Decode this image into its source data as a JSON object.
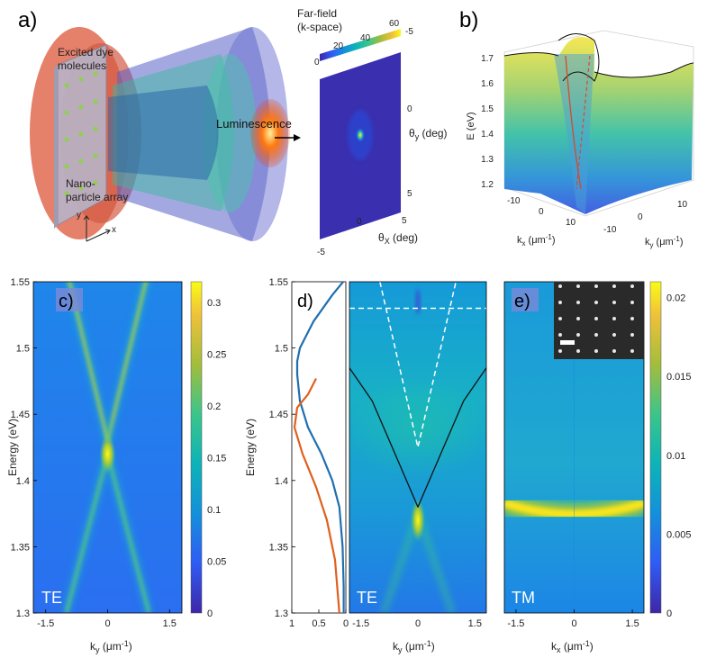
{
  "panels": {
    "a": {
      "label": "a)",
      "text_dye": [
        "Excited dye",
        "molecules"
      ],
      "text_np": [
        "Nano-",
        "particle array"
      ],
      "text_lum": "Luminescence",
      "axis_y": "y",
      "axis_x": "x",
      "farfield_title": [
        "Far-field",
        "(k-space)"
      ],
      "colorbar_ticks": [
        "0",
        "20",
        "40",
        "60"
      ],
      "theta_y_ticks": [
        "-5",
        "0",
        "5"
      ],
      "theta_x_ticks": [
        "-5",
        "0",
        "5"
      ],
      "theta_y_label": [
        "θ",
        "y",
        " (deg)"
      ],
      "theta_x_label": [
        "θ",
        "X",
        " (deg)"
      ]
    },
    "b": {
      "label": "b)",
      "zlabel": "E (eV)",
      "zticks": [
        "1.7",
        "1.6",
        "1.5",
        "1.4",
        "1.3",
        "1.2"
      ],
      "kx_ticks": [
        "-10",
        "0",
        "10"
      ],
      "ky_ticks": [
        "10",
        "0",
        "-10"
      ],
      "kx_label": [
        "k",
        "x",
        " (μm",
        "-1",
        ")"
      ],
      "ky_label": [
        "k",
        "y",
        " (μm",
        "-1",
        ")"
      ]
    },
    "c": {
      "label": "c)",
      "mode": "TE",
      "ylabel": "Energy (eV)",
      "yticks": [
        "1.55",
        "1.5",
        "1.45",
        "1.4",
        "1.35",
        "1.3"
      ],
      "xticks": [
        "-1.5",
        "0",
        "1.5"
      ],
      "xlabel": [
        "k",
        "y",
        " (μm",
        "-1",
        ")"
      ],
      "colorbar_ticks": [
        "0.3",
        "0.25",
        "0.2",
        "0.15",
        "0.1",
        "0.05",
        "0"
      ]
    },
    "d": {
      "label": "d)",
      "mode": "TE",
      "ylabel": "Energy (eV)",
      "yticks": [
        "1.55",
        "1.5",
        "1.45",
        "1.4",
        "1.35",
        "1.3"
      ],
      "profile_xticks": [
        "1",
        "0.5",
        "0"
      ],
      "xticks": [
        "-1.5",
        "0",
        "1.5"
      ],
      "xlabel": [
        "k",
        "y",
        " (μm",
        "-1",
        ")"
      ]
    },
    "e": {
      "label": "e)",
      "mode": "TM",
      "xticks": [
        "-1.5",
        "0",
        "1.5"
      ],
      "xlabel": [
        "k",
        "x",
        " (μm",
        "-1",
        ")"
      ],
      "colorbar_ticks": [
        "0.02",
        "0.015",
        "0.01",
        "0.005",
        "0"
      ]
    }
  },
  "chart_data": [
    {
      "type": "heatmap",
      "panel": "c",
      "title": "TE",
      "xlabel": "k_y (μm^-1)",
      "ylabel": "Energy (eV)",
      "xlim": [
        -1.8,
        1.8
      ],
      "ylim": [
        1.3,
        1.55
      ],
      "colorbar_range": [
        0,
        0.32
      ],
      "features": [
        {
          "name": "dispersive mode (+)",
          "k": [
            0,
            1.0
          ],
          "E": [
            1.43,
            1.56
          ]
        },
        {
          "name": "dispersive mode (-)",
          "k": [
            0,
            -1.0
          ],
          "E": [
            1.43,
            1.56
          ]
        },
        {
          "name": "lower mode (+)",
          "k": [
            0,
            1.0
          ],
          "E": [
            1.42,
            1.3
          ]
        },
        {
          "name": "lower mode (-)",
          "k": [
            0,
            -1.0
          ],
          "E": [
            1.42,
            1.3
          ]
        },
        {
          "name": "bright spot",
          "k": 0,
          "E": 1.42
        }
      ]
    },
    {
      "type": "line",
      "panel": "d (profile)",
      "ylabel": "Energy (eV)",
      "xlim": [
        1,
        0
      ],
      "ylim": [
        1.3,
        1.55
      ],
      "series": [
        {
          "name": "blue",
          "x": [
            0.05,
            0.25,
            0.6,
            0.85,
            0.9,
            0.9,
            0.85,
            0.7,
            0.45,
            0.25,
            0.12,
            0.06,
            0.04,
            0.04
          ],
          "y": [
            1.55,
            1.54,
            1.52,
            1.5,
            1.49,
            1.48,
            1.46,
            1.44,
            1.42,
            1.4,
            1.38,
            1.35,
            1.32,
            1.3
          ]
        },
        {
          "name": "orange",
          "x": [
            0.55,
            0.7,
            0.9,
            0.95,
            0.8,
            0.55,
            0.35,
            0.2,
            0.12
          ],
          "y": [
            1.477,
            1.465,
            1.455,
            1.44,
            1.42,
            1.395,
            1.37,
            1.34,
            1.3
          ]
        }
      ]
    },
    {
      "type": "heatmap",
      "panel": "d",
      "title": "TE",
      "xlabel": "k_y (μm^-1)",
      "xlim": [
        -1.8,
        1.8
      ],
      "ylim": [
        1.3,
        1.55
      ],
      "features": [
        {
          "name": "black dispersion curve",
          "k": [
            -1.8,
            -1.2,
            -0.6,
            0,
            0.6,
            1.2,
            1.8
          ],
          "E": [
            1.485,
            1.46,
            1.42,
            1.38,
            1.42,
            1.46,
            1.485
          ]
        },
        {
          "name": "dashed light cone",
          "k": [
            -1.0,
            0,
            1.0
          ],
          "E": [
            1.55,
            1.425,
            1.55
          ]
        },
        {
          "name": "dashed horizontal",
          "E": 1.53
        },
        {
          "name": "bright spot",
          "k": 0,
          "E": 1.37
        }
      ]
    },
    {
      "type": "heatmap",
      "panel": "e",
      "title": "TM",
      "xlabel": "k_x (μm^-1)",
      "xlim": [
        -1.8,
        1.8
      ],
      "ylim": [
        1.3,
        1.55
      ],
      "colorbar_range": [
        0,
        0.021
      ],
      "features": [
        {
          "name": "flat mode",
          "k": [
            -1.8,
            0,
            1.8
          ],
          "E": [
            1.383,
            1.373,
            1.383
          ]
        }
      ]
    }
  ]
}
